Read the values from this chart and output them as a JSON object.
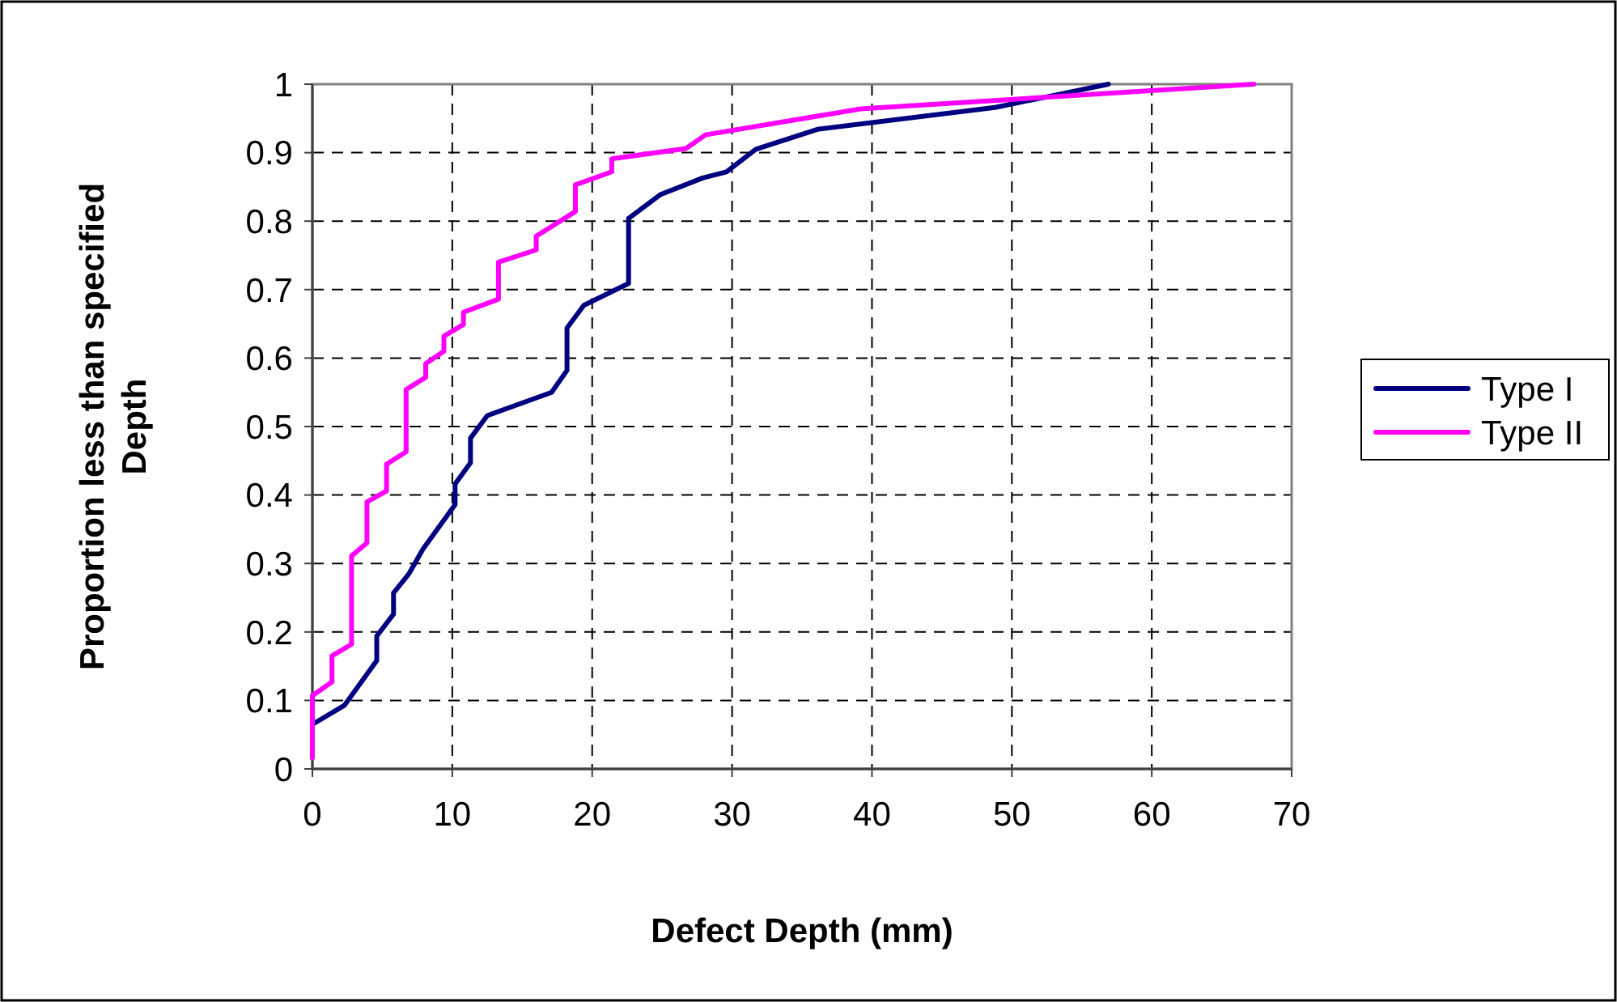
{
  "chart_data": {
    "type": "line",
    "xlabel": "Defect Depth (mm)",
    "ylabel": "Proportion less than specified Depth",
    "xlim": [
      0,
      70
    ],
    "xticks": [
      0,
      10,
      20,
      30,
      40,
      50,
      60,
      70
    ],
    "ylim": [
      0,
      1
    ],
    "yticks": [
      0,
      0.1,
      0.2,
      0.3,
      0.4,
      0.5,
      0.6,
      0.7,
      0.8,
      0.9,
      1
    ],
    "grid": true,
    "legend": "right",
    "marker": "none",
    "line_style": "solid",
    "series": [
      {
        "name": "Type I",
        "color": "#000080",
        "x": [
          0,
          2.3,
          4.6,
          4.6,
          5.8,
          5.8,
          6.9,
          7.9,
          10.2,
          10.2,
          11.3,
          11.3,
          12.5,
          17.1,
          18.2,
          18.2,
          19.4,
          22.6,
          22.6,
          24.9,
          27.9,
          29.6,
          31.7,
          36.1,
          48.8,
          56.9
        ],
        "values": [
          0.065,
          0.093,
          0.158,
          0.194,
          0.226,
          0.257,
          0.285,
          0.321,
          0.386,
          0.416,
          0.447,
          0.483,
          0.516,
          0.55,
          0.582,
          0.644,
          0.677,
          0.709,
          0.804,
          0.839,
          0.863,
          0.872,
          0.905,
          0.934,
          0.966,
          1
        ]
      },
      {
        "name": "Type II",
        "color": "#ff00ff",
        "x": [
          0,
          0,
          1.4,
          1.4,
          2.8,
          2.8,
          3.9,
          3.9,
          5.3,
          5.3,
          6.7,
          6.7,
          8.1,
          8.1,
          9.4,
          9.4,
          10.8,
          10.8,
          13.3,
          13.3,
          16,
          16,
          18.8,
          18.8,
          21.4,
          21.4,
          26.7,
          28.1,
          39.2,
          67.3
        ],
        "values": [
          0.016,
          0.107,
          0.127,
          0.165,
          0.182,
          0.311,
          0.33,
          0.39,
          0.406,
          0.445,
          0.463,
          0.554,
          0.572,
          0.592,
          0.61,
          0.632,
          0.649,
          0.667,
          0.686,
          0.74,
          0.758,
          0.778,
          0.814,
          0.853,
          0.872,
          0.891,
          0.906,
          0.926,
          0.964,
          1
        ]
      }
    ]
  }
}
